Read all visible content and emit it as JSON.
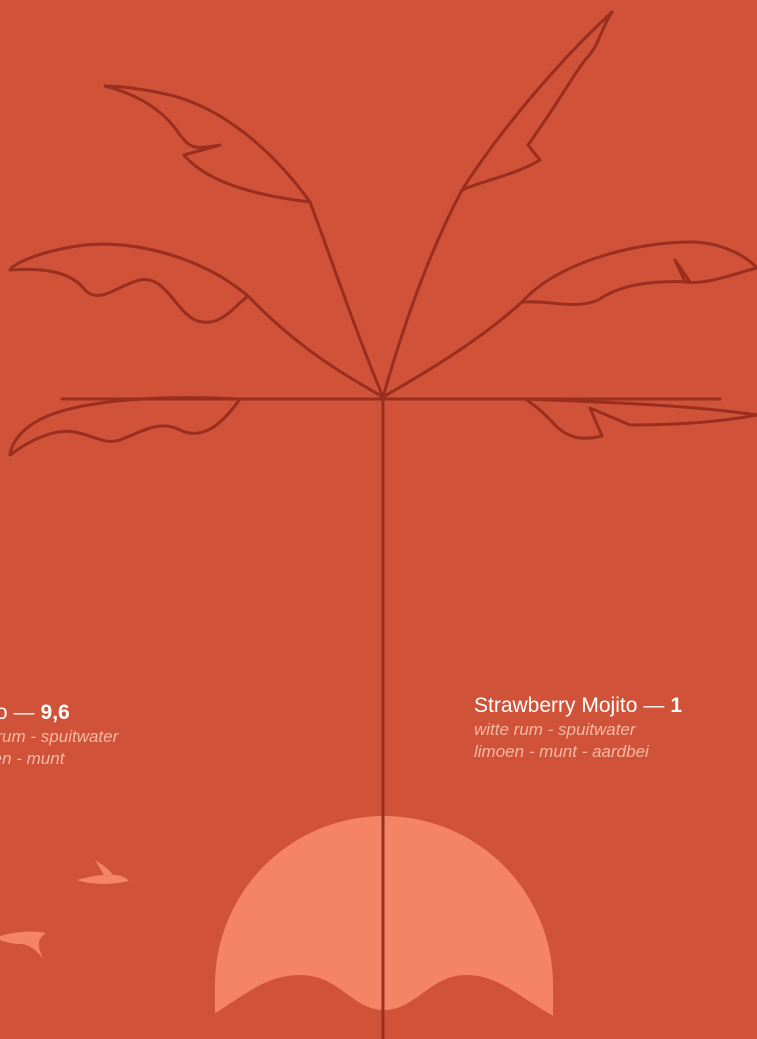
{
  "colors": {
    "background": "#d05239",
    "outline": "#9a2e1f",
    "sun": "#f58466",
    "birds": "#f58466",
    "drink_name": "#ffffff",
    "ingredients": "#f6b9a3"
  },
  "menu": {
    "drinks": [
      {
        "name": "ojito",
        "separator": "—",
        "price": "9,6",
        "ingredients_line1": "itte rum - spuitwater",
        "ingredients_line2": "moen - munt"
      },
      {
        "name": "Strawberry Mojito",
        "separator": "—",
        "price": "1",
        "ingredients_line1": "witte rum - spuitwater",
        "ingredients_line2": "limoen - munt - aardbei"
      }
    ]
  }
}
